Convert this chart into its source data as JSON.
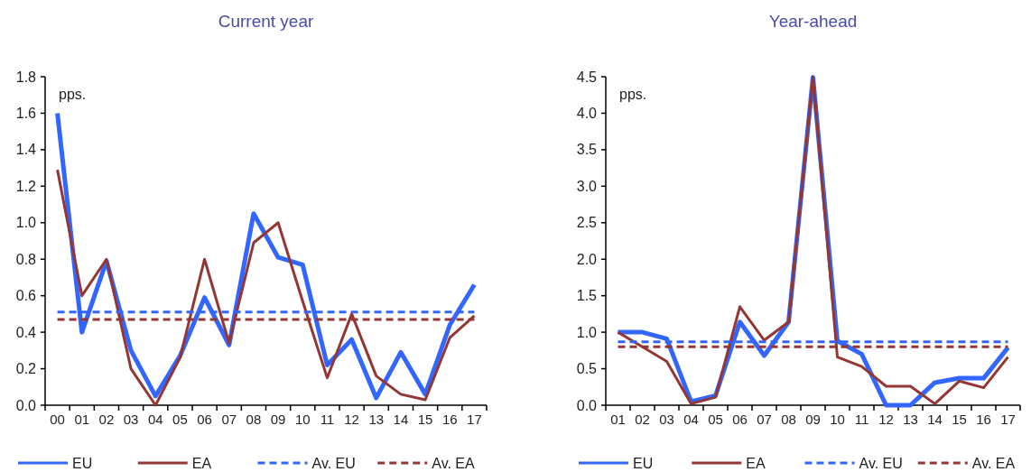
{
  "chart_data": [
    {
      "type": "line",
      "title": "Current year",
      "annotations": [
        "pps."
      ],
      "categories": [
        "00",
        "01",
        "02",
        "03",
        "04",
        "05",
        "06",
        "07",
        "08",
        "09",
        "10",
        "11",
        "12",
        "13",
        "14",
        "15",
        "16",
        "17"
      ],
      "ylim": [
        0,
        1.8
      ],
      "yticks": [
        {
          "value": 0,
          "label": "0.0"
        },
        {
          "value": 0.2,
          "label": "0.2"
        },
        {
          "value": 0.4,
          "label": "0.4"
        },
        {
          "value": 0.6,
          "label": "0.6"
        },
        {
          "value": 0.8,
          "label": "0.8"
        },
        {
          "value": 1,
          "label": "1.0"
        },
        {
          "value": 1.2,
          "label": "1.2"
        },
        {
          "value": 1.4,
          "label": "1.4"
        },
        {
          "value": 1.6,
          "label": "1.6"
        },
        {
          "value": 1.8,
          "label": "1.8"
        }
      ],
      "grid": false,
      "legend": "bottom",
      "marker": "none",
      "series": [
        {
          "name": "EU",
          "color": "#3366ff",
          "line_style": "solid",
          "values": [
            1.6,
            0.4,
            0.79,
            0.3,
            0.05,
            0.27,
            0.59,
            0.33,
            1.05,
            0.81,
            0.77,
            0.22,
            0.36,
            0.04,
            0.29,
            0.06,
            0.44,
            0.66
          ]
        },
        {
          "name": "EA",
          "color": "#943634",
          "line_style": "solid",
          "values": [
            1.29,
            0.6,
            0.8,
            0.2,
            0.0,
            0.26,
            0.8,
            0.34,
            0.89,
            1.0,
            0.57,
            0.15,
            0.5,
            0.16,
            0.06,
            0.03,
            0.37,
            0.49
          ]
        },
        {
          "name": "Av. EU",
          "color": "#3366ff",
          "line_style": "dashed",
          "values": [
            0.51,
            0.51,
            0.51,
            0.51,
            0.51,
            0.51,
            0.51,
            0.51,
            0.51,
            0.51,
            0.51,
            0.51,
            0.51,
            0.51,
            0.51,
            0.51,
            0.51,
            0.51
          ]
        },
        {
          "name": "Av. EA",
          "color": "#943634",
          "line_style": "dashed",
          "values": [
            0.47,
            0.47,
            0.47,
            0.47,
            0.47,
            0.47,
            0.47,
            0.47,
            0.47,
            0.47,
            0.47,
            0.47,
            0.47,
            0.47,
            0.47,
            0.47,
            0.47,
            0.47
          ]
        }
      ]
    },
    {
      "type": "line",
      "title": "Year-ahead",
      "annotations": [
        "pps."
      ],
      "categories": [
        "01",
        "02",
        "03",
        "04",
        "05",
        "06",
        "07",
        "08",
        "09",
        "10",
        "11",
        "12",
        "13",
        "14",
        "15",
        "16",
        "17"
      ],
      "ylim": [
        0,
        4.5
      ],
      "yticks": [
        {
          "value": 0,
          "label": "0.0"
        },
        {
          "value": 0.5,
          "label": "0.5"
        },
        {
          "value": 1,
          "label": "1.0"
        },
        {
          "value": 1.5,
          "label": "1.5"
        },
        {
          "value": 2,
          "label": "2.0"
        },
        {
          "value": 2.5,
          "label": "2.5"
        },
        {
          "value": 3,
          "label": "3.0"
        },
        {
          "value": 3.5,
          "label": "3.5"
        },
        {
          "value": 4,
          "label": "4.0"
        },
        {
          "value": 4.5,
          "label": "4.5"
        }
      ],
      "grid": false,
      "legend": "bottom",
      "marker": "none",
      "series": [
        {
          "name": "EU",
          "color": "#3366ff",
          "line_style": "solid",
          "values": [
            1.0,
            1.0,
            0.91,
            0.05,
            0.13,
            1.14,
            0.68,
            1.14,
            4.49,
            0.88,
            0.7,
            0.0,
            0.0,
            0.31,
            0.37,
            0.37,
            0.79
          ]
        },
        {
          "name": "EA",
          "color": "#943634",
          "line_style": "solid",
          "values": [
            1.0,
            0.8,
            0.6,
            0.02,
            0.11,
            1.35,
            0.89,
            1.14,
            4.5,
            0.66,
            0.53,
            0.26,
            0.26,
            0.02,
            0.33,
            0.24,
            0.66
          ]
        },
        {
          "name": "Av. EU",
          "color": "#3366ff",
          "line_style": "dashed",
          "values": [
            0.87,
            0.87,
            0.87,
            0.87,
            0.87,
            0.87,
            0.87,
            0.87,
            0.87,
            0.87,
            0.87,
            0.87,
            0.87,
            0.87,
            0.87,
            0.87,
            0.87
          ]
        },
        {
          "name": "Av. EA",
          "color": "#943634",
          "line_style": "dashed",
          "values": [
            0.8,
            0.8,
            0.8,
            0.8,
            0.8,
            0.8,
            0.8,
            0.8,
            0.8,
            0.8,
            0.8,
            0.8,
            0.8,
            0.8,
            0.8,
            0.8,
            0.8
          ]
        }
      ]
    }
  ]
}
